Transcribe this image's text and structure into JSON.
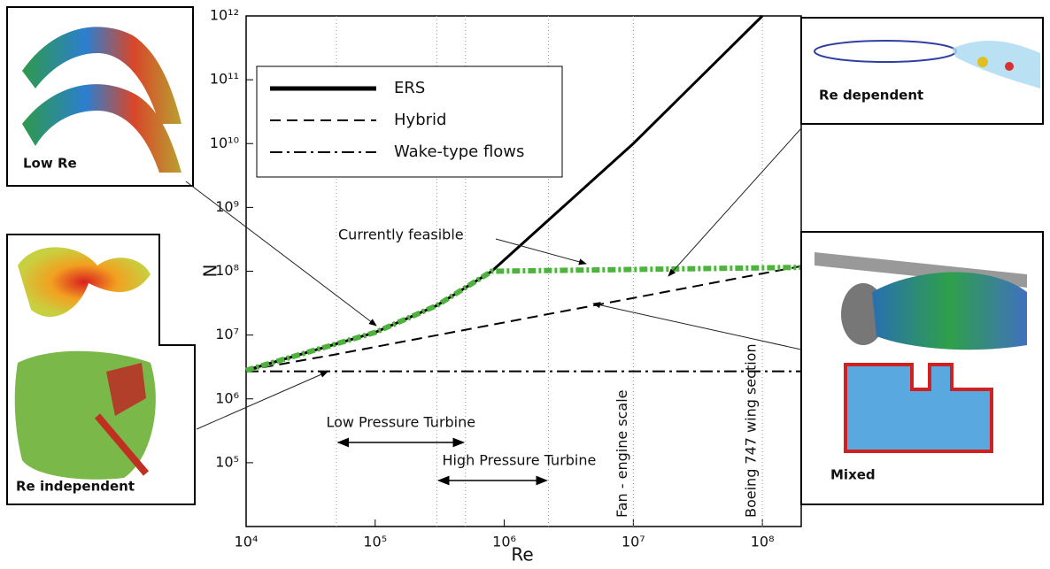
{
  "chart_data": {
    "type": "line",
    "xscale": "log",
    "yscale": "log",
    "x_label": "Re",
    "y_label": "N",
    "xlim": [
      10000,
      200000000
    ],
    "ylim": [
      10000,
      1000000000000
    ],
    "xticks": [
      {
        "value": 10000,
        "label": "10⁴"
      },
      {
        "value": 100000,
        "label": "10⁵"
      },
      {
        "value": 1000000,
        "label": "10⁶"
      },
      {
        "value": 10000000,
        "label": "10⁷"
      },
      {
        "value": 100000000,
        "label": "10⁸"
      }
    ],
    "yticks": [
      {
        "value": 100000,
        "label": "10⁵"
      },
      {
        "value": 1000000,
        "label": "10⁶"
      },
      {
        "value": 10000000,
        "label": "10⁷"
      },
      {
        "value": 100000000,
        "label": "10⁸"
      },
      {
        "value": 1000000000,
        "label": "10⁹"
      },
      {
        "value": 10000000000,
        "label": "10¹⁰"
      },
      {
        "value": 100000000000,
        "label": "10¹¹"
      },
      {
        "value": 1000000000000,
        "label": "10¹²"
      }
    ],
    "series": [
      {
        "name": "ERS",
        "color": "#000000",
        "style": "solid",
        "x": [
          10000,
          100000,
          300000,
          800000,
          10000000,
          100000000
        ],
        "values": [
          2800000,
          11000000,
          29000000,
          100000000,
          10000000000,
          1000000000000
        ]
      },
      {
        "name": "Hybrid",
        "color": "#000000",
        "style": "dashed",
        "x": [
          10000,
          50000,
          200000000
        ],
        "values": [
          2800000,
          5000000,
          120000000
        ]
      },
      {
        "name": "Wake-type flows",
        "color": "#000000",
        "style": "dashdot",
        "x": [
          10000,
          200000000
        ],
        "values": [
          2700000,
          2700000
        ]
      },
      {
        "name": "Currently feasible",
        "color": "#4db33d",
        "style": "thick",
        "legend": false,
        "x": [
          10000,
          100000,
          300000,
          800000,
          200000000
        ],
        "values": [
          2800000,
          11000000,
          29000000,
          100000000,
          115000000
        ]
      }
    ],
    "ranges": [
      {
        "label": "Low Pressure Turbine",
        "from": 50000,
        "to": 500000
      },
      {
        "label": "High Pressure Turbine",
        "from": 300000,
        "to": 2200000
      }
    ],
    "markers": [
      {
        "label": "Fan - engine scale",
        "x": 10000000
      },
      {
        "label": "Boeing 747 wing section",
        "x": 100000000
      }
    ]
  },
  "insets": [
    {
      "caption": "Low Re"
    },
    {
      "caption": "Re dependent"
    },
    {
      "caption": "Re independent"
    },
    {
      "caption": "Mixed"
    }
  ]
}
